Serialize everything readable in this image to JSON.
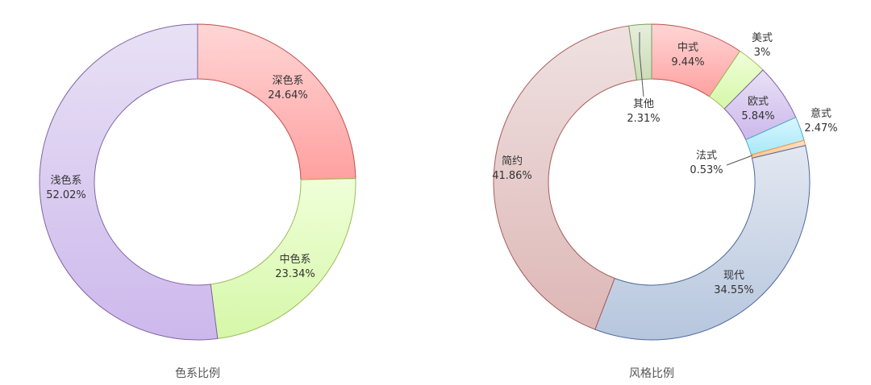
{
  "chart_data": [
    {
      "type": "pie",
      "title": "色系比例",
      "categories": [
        "深色系",
        "中色系",
        "浅色系"
      ],
      "values": [
        24.64,
        23.34,
        52.02
      ],
      "value_labels": [
        "24.64%",
        "23.34%",
        "52.02%"
      ],
      "colors": [
        {
          "fill_light": "#FFD6D6",
          "fill_dark": "#FFA0A0",
          "stroke": "#C0504D"
        },
        {
          "fill_light": "#EFFFD9",
          "fill_dark": "#D6F7A8",
          "stroke": "#9BBB59"
        },
        {
          "fill_light": "#E8E1F5",
          "fill_dark": "#CDB8EC",
          "stroke": "#8064A2"
        }
      ]
    },
    {
      "type": "pie",
      "title": "风格比例",
      "categories": [
        "中式",
        "美式",
        "欧式",
        "意式",
        "法式",
        "现代",
        "简约",
        "其他"
      ],
      "values": [
        9.44,
        3,
        5.84,
        2.47,
        0.53,
        34.55,
        41.86,
        2.31
      ],
      "value_labels": [
        "9.44%",
        "3%",
        "5.84%",
        "2.47%",
        "0.53%",
        "34.55%",
        "41.86%",
        "2.31%"
      ],
      "colors": [
        {
          "fill_light": "#FFD6D6",
          "fill_dark": "#FFA0A0",
          "stroke": "#C0504D"
        },
        {
          "fill_light": "#EFFFD9",
          "fill_dark": "#D6F7A8",
          "stroke": "#9BBB59"
        },
        {
          "fill_light": "#E8E1F5",
          "fill_dark": "#CDB8EC",
          "stroke": "#8064A2"
        },
        {
          "fill_light": "#D9F6FF",
          "fill_dark": "#A8E8F7",
          "stroke": "#4BACC6"
        },
        {
          "fill_light": "#FFE3CC",
          "fill_dark": "#F9C393",
          "stroke": "#F79646"
        },
        {
          "fill_light": "#E3E8F1",
          "fill_dark": "#B6C6DE",
          "stroke": "#4F6A9A"
        },
        {
          "fill_light": "#EFE1E1",
          "fill_dark": "#DDB7B6",
          "stroke": "#A65C5A"
        },
        {
          "fill_light": "#E6EEDD",
          "fill_dark": "#CBDCB7",
          "stroke": "#7E9C5B"
        }
      ]
    }
  ]
}
